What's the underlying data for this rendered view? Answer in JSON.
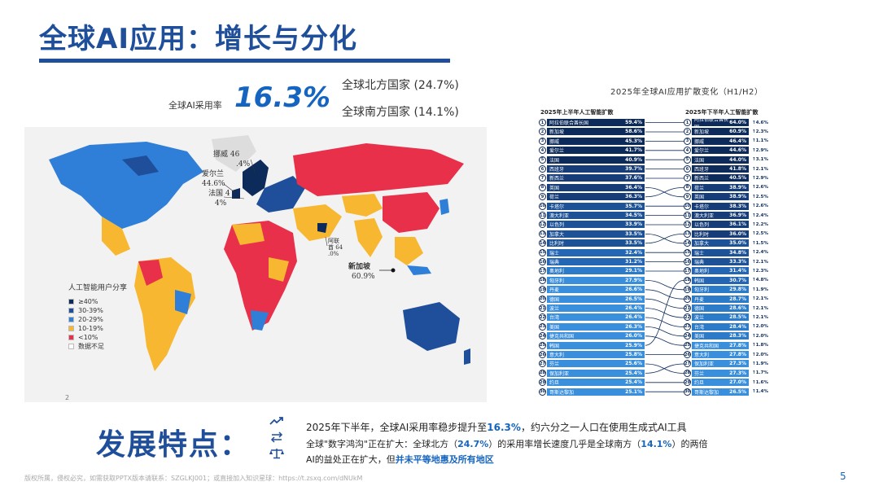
{
  "title": "全球AI应用：增长与分化",
  "adoption": {
    "label": "全球AI采用率",
    "value": "16.3%",
    "north": "全球北方国家 (24.7%)",
    "south": "全球南方国家 (14.1%)"
  },
  "map": {
    "callouts": {
      "norway": "挪威 46",
      "norway_pct": ".4%",
      "ireland": "爱尔兰",
      "ireland_pct": "44.6%",
      "france": "法国 4",
      "france_pct": "4%",
      "uae": "阿联",
      "uae_pct": "酋 64",
      "uae_pct2": ".0%",
      "singapore": "新加坡",
      "singapore_pct": "60.9%"
    },
    "legend_title": "人工智能用户分享",
    "legend": [
      {
        "label": "≥40%",
        "color": "#0d2b5a"
      },
      {
        "label": "30-39%",
        "color": "#1F4E9A"
      },
      {
        "label": "20-29%",
        "color": "#2f7fd8"
      },
      {
        "label": "10-19%",
        "color": "#f7b731"
      },
      {
        "label": "<10%",
        "color": "#e8304a"
      },
      {
        "label": "数据不足",
        "color": "#ffffff"
      }
    ],
    "footnote": "2"
  },
  "ranking": {
    "title": "2025年全球AI应用扩散变化（H1/H2）",
    "h1_header": "2025年上半年人工智能扩散",
    "h2_header": "2025年下半年人工智能扩散",
    "h1": [
      {
        "rank": "1",
        "name": "阿拉伯联合酋长国",
        "value": "59.4%"
      },
      {
        "rank": "2",
        "name": "新加坡",
        "value": "58.6%"
      },
      {
        "rank": "3",
        "name": "挪威",
        "value": "45.3%"
      },
      {
        "rank": "4",
        "name": "爱尔兰",
        "value": "41.7%"
      },
      {
        "rank": "5",
        "name": "法国",
        "value": "40.9%"
      },
      {
        "rank": "6",
        "name": "西班牙",
        "value": "39.7%"
      },
      {
        "rank": "7",
        "name": "新西兰",
        "value": "37.6%"
      },
      {
        "rank": "8",
        "name": "英国",
        "value": "36.4%"
      },
      {
        "rank": "9",
        "name": "荷兰",
        "value": "36.3%"
      },
      {
        "rank": "10",
        "name": "卡塔尔",
        "value": "35.7%"
      },
      {
        "rank": "11",
        "name": "澳大利亚",
        "value": "34.5%"
      },
      {
        "rank": "12",
        "name": "以色列",
        "value": "33.9%"
      },
      {
        "rank": "13",
        "name": "加拿大",
        "value": "33.5%"
      },
      {
        "rank": "14",
        "name": "比利时",
        "value": "33.5%"
      },
      {
        "rank": "15",
        "name": "瑞士",
        "value": "32.4%"
      },
      {
        "rank": "16",
        "name": "瑞典",
        "value": "31.2%"
      },
      {
        "rank": "17",
        "name": "奥地利",
        "value": "29.1%"
      },
      {
        "rank": "18",
        "name": "匈牙利",
        "value": "27.9%"
      },
      {
        "rank": "19",
        "name": "丹麦",
        "value": "26.6%"
      },
      {
        "rank": "20",
        "name": "德国",
        "value": "26.5%"
      },
      {
        "rank": "21",
        "name": "波兰",
        "value": "26.4%"
      },
      {
        "rank": "22",
        "name": "台湾",
        "value": "26.4%"
      },
      {
        "rank": "23",
        "name": "美国",
        "value": "26.3%"
      },
      {
        "rank": "24",
        "name": "捷克共和国",
        "value": "26.0%"
      },
      {
        "rank": "25",
        "name": "韩国",
        "value": "25.9%"
      },
      {
        "rank": "26",
        "name": "意大利",
        "value": "25.8%"
      },
      {
        "rank": "27",
        "name": "芬兰",
        "value": "25.6%"
      },
      {
        "rank": "28",
        "name": "保加利亚",
        "value": "25.4%"
      },
      {
        "rank": "29",
        "name": "约旦",
        "value": "25.4%"
      },
      {
        "rank": "30",
        "name": "哥斯达黎加",
        "value": "25.1%"
      }
    ],
    "h2": [
      {
        "rank": "1",
        "name": "阿拉伯联合酋长国",
        "value": "64.0%",
        "change": "↑4.6%"
      },
      {
        "rank": "2",
        "name": "新加坡",
        "value": "60.9%",
        "change": "↑2.3%"
      },
      {
        "rank": "3",
        "name": "挪威",
        "value": "46.4%",
        "change": "↑1.1%"
      },
      {
        "rank": "4",
        "name": "爱尔兰",
        "value": "44.6%",
        "change": "↑2.9%"
      },
      {
        "rank": "5",
        "name": "法国",
        "value": "44.0%",
        "change": "↑3.1%"
      },
      {
        "rank": "6",
        "name": "西班牙",
        "value": "41.8%",
        "change": "↑2.1%"
      },
      {
        "rank": "7",
        "name": "新西兰",
        "value": "40.5%",
        "change": "↑2.9%"
      },
      {
        "rank": "8",
        "name": "荷兰",
        "value": "38.9%",
        "change": "↑2.6%"
      },
      {
        "rank": "9",
        "name": "英国",
        "value": "38.9%",
        "change": "↑2.5%"
      },
      {
        "rank": "10",
        "name": "卡塔尔",
        "value": "38.3%",
        "change": "↑2.6%"
      },
      {
        "rank": "11",
        "name": "澳大利亚",
        "value": "36.9%",
        "change": "↑2.4%"
      },
      {
        "rank": "12",
        "name": "以色列",
        "value": "36.1%",
        "change": "↑2.2%"
      },
      {
        "rank": "13",
        "name": "比利时",
        "value": "36.0%",
        "change": "↑2.5%"
      },
      {
        "rank": "14",
        "name": "加拿大",
        "value": "35.0%",
        "change": "↑1.5%"
      },
      {
        "rank": "15",
        "name": "瑞士",
        "value": "34.8%",
        "change": "↑2.4%"
      },
      {
        "rank": "16",
        "name": "瑞典",
        "value": "33.3%",
        "change": "↑2.1%"
      },
      {
        "rank": "17",
        "name": "奥地利",
        "value": "31.4%",
        "change": "↑2.3%"
      },
      {
        "rank": "18",
        "name": "韩国",
        "value": "30.7%",
        "change": "↑4.8%"
      },
      {
        "rank": "19",
        "name": "匈牙利",
        "value": "29.8%",
        "change": "↑1.9%"
      },
      {
        "rank": "20",
        "name": "丹麦",
        "value": "28.7%",
        "change": "↑2.1%"
      },
      {
        "rank": "21",
        "name": "德国",
        "value": "28.6%",
        "change": "↑2.1%"
      },
      {
        "rank": "22",
        "name": "波兰",
        "value": "28.5%",
        "change": "↑2.1%"
      },
      {
        "rank": "23",
        "name": "台湾",
        "value": "28.4%",
        "change": "↑2.0%"
      },
      {
        "rank": "24",
        "name": "美国",
        "value": "28.3%",
        "change": "↑2.0%"
      },
      {
        "rank": "25",
        "name": "捷克共和国",
        "value": "27.8%",
        "change": "↑1.8%"
      },
      {
        "rank": "26",
        "name": "意大利",
        "value": "27.8%",
        "change": "↑2.0%"
      },
      {
        "rank": "27",
        "name": "保加利亚",
        "value": "27.3%",
        "change": "↑1.9%"
      },
      {
        "rank": "28",
        "name": "芬兰",
        "value": "27.3%",
        "change": "↑1.7%"
      },
      {
        "rank": "29",
        "name": "约旦",
        "value": "27.0%",
        "change": "↑1.6%"
      },
      {
        "rank": "30",
        "name": "哥斯达黎加",
        "value": "26.5%",
        "change": "↑1.4%"
      }
    ]
  },
  "features": {
    "title": "发展特点：",
    "line1_a": "2025年下半年，全球AI采用率稳步提升至",
    "line1_b": "16.3%",
    "line1_c": "，约六分之一人口在使用生成式AI工具",
    "line2_a": "全球\"数字鸿沟\"正在扩大：全球北方（",
    "line2_b": "24.7%",
    "line2_c": "）的采用率增长速度几乎是全球南方（",
    "line2_d": "14.1%",
    "line2_e": "）的两倍",
    "line3_a": "AI的益处正在扩大，但",
    "line3_b": "并未平等地惠及所有地区",
    "icons": [
      "trend-up-icon",
      "arrows-exchange-icon",
      "balance-scale-icon"
    ]
  },
  "footer": "版权所属，侵权必究，如需获取PPTX版本请联系：SZGLKJ001；或直接加入知识星球：https://t.zsxq.com/dNUkM",
  "page_number": "5"
}
